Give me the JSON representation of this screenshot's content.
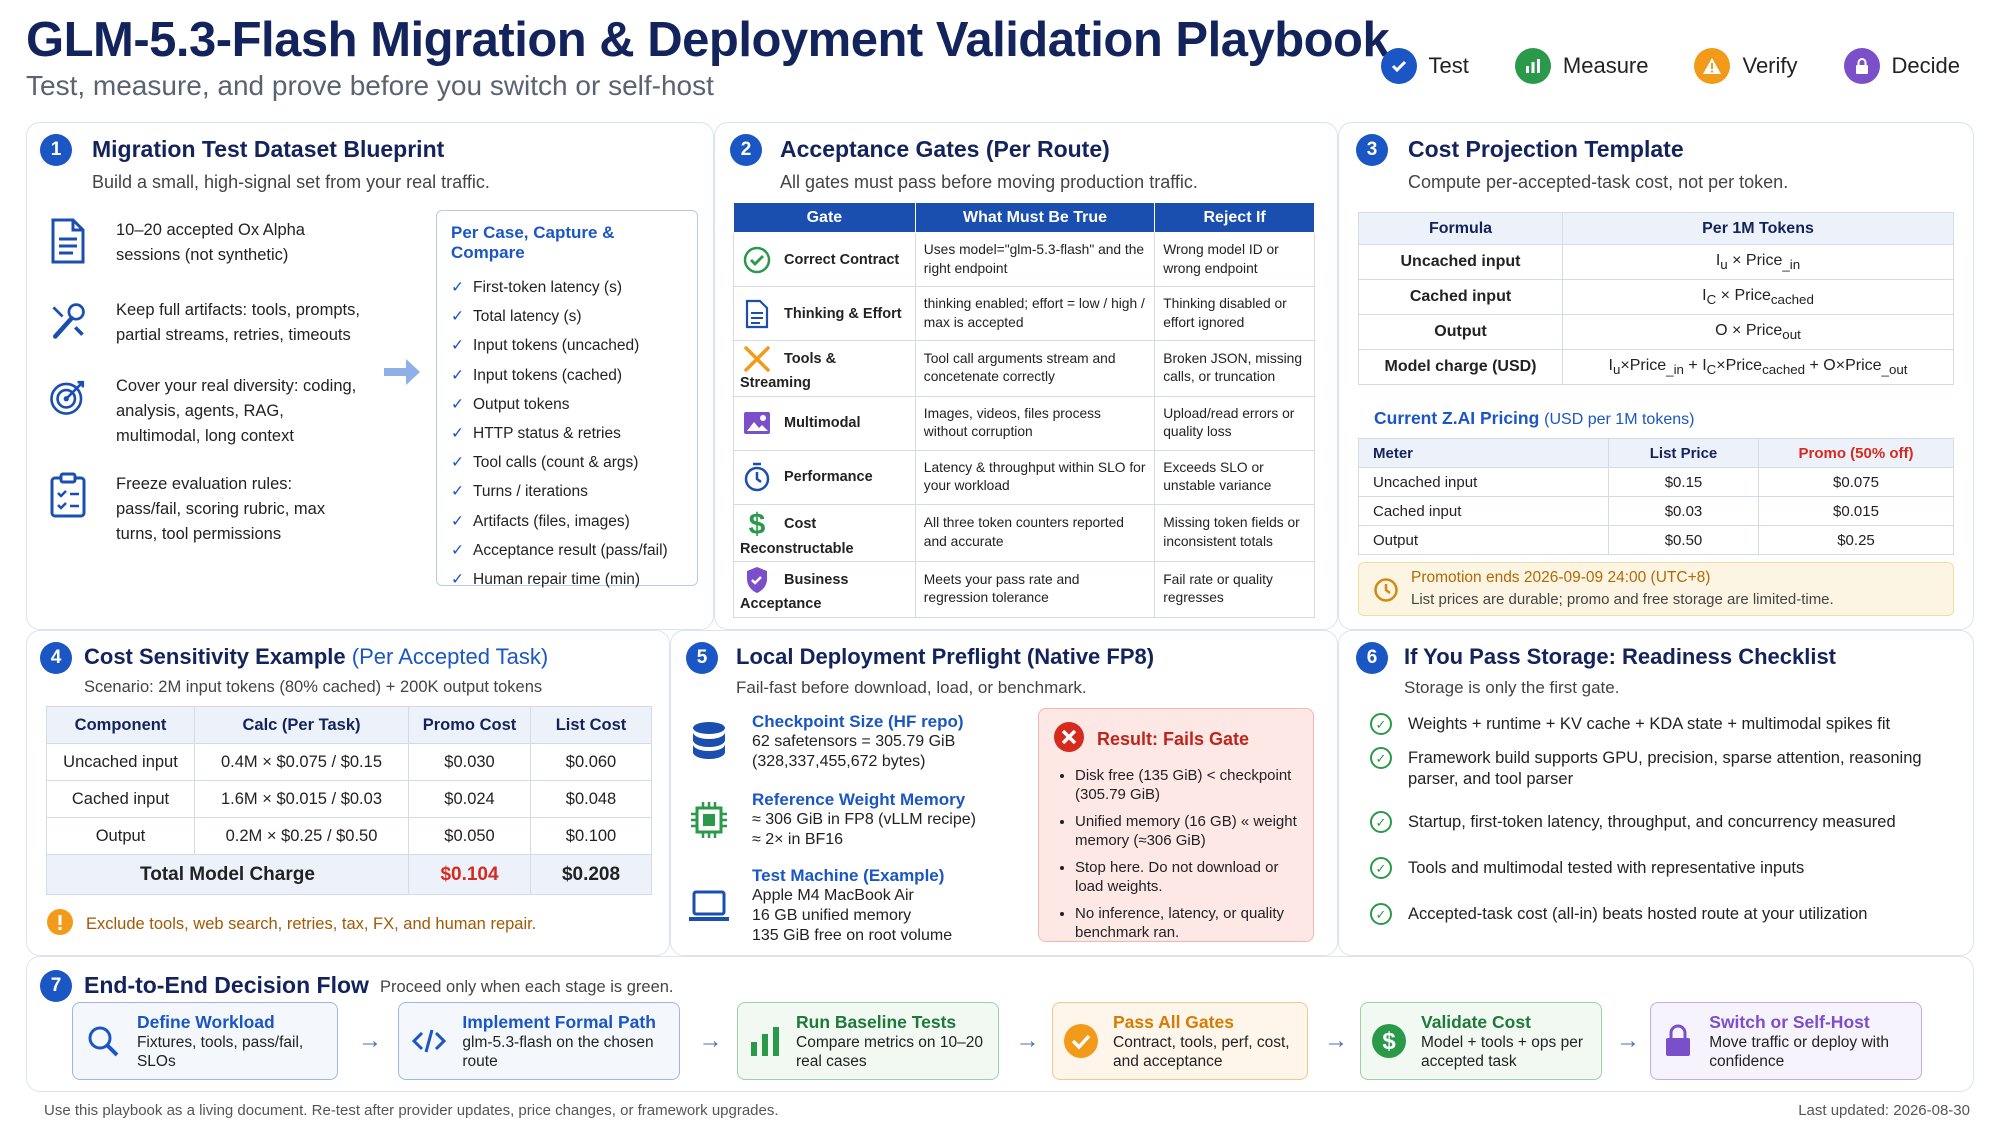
{
  "header": {
    "title": "GLM-5.3-Flash Migration & Deployment Validation Playbook",
    "subtitle": "Test, measure, and prove before you switch or self-host",
    "legend": [
      "Test",
      "Measure",
      "Verify",
      "Decide"
    ],
    "legend_colors": [
      "#1a56c4",
      "#2a9a4a",
      "#f29a1a",
      "#7a4fc9"
    ]
  },
  "s1": {
    "num": "1",
    "title": "Migration Test Dataset Blueprint",
    "sub": "Build a small, high-signal set from your real traffic.",
    "items": [
      {
        "icon": "document-icon",
        "text": "10–20 accepted Ox Alpha sessions (not synthetic)"
      },
      {
        "icon": "tools-icon",
        "text": "Keep full artifacts: tools, prompts, partial streams, retries, timeouts"
      },
      {
        "icon": "target-icon",
        "text": "Cover your real diversity: coding, analysis, agents, RAG, multimodal, long context"
      },
      {
        "icon": "clipboard-icon",
        "text": "Freeze evaluation rules: pass/fail, scoring rubric, max turns, tool permissions"
      }
    ],
    "capture_title": "Per Case, Capture & Compare",
    "capture": [
      "First-token latency (s)",
      "Total latency (s)",
      "Input tokens (uncached)",
      "Input tokens (cached)",
      "Output tokens",
      "HTTP status & retries",
      "Tool calls (count & args)",
      "Turns / iterations",
      "Artifacts (files, images)",
      "Acceptance result (pass/fail)",
      "Human repair time (min)"
    ]
  },
  "s2": {
    "num": "2",
    "title": "Acceptance Gates (Per Route)",
    "sub": "All gates must pass before moving production traffic.",
    "headers": [
      "Gate",
      "What Must Be True",
      "Reject If"
    ],
    "rows": [
      {
        "icon": "check-circle-icon",
        "gate": "Correct Contract",
        "true": "Uses model=\"glm-5.3-flash\" and the right endpoint",
        "reject": "Wrong model ID or wrong endpoint"
      },
      {
        "icon": "document-icon",
        "gate": "Thinking & Effort",
        "true": "thinking enabled; effort = low / high / max is accepted",
        "reject": "Thinking disabled or effort ignored"
      },
      {
        "icon": "tools-icon",
        "gate": "Tools & Streaming",
        "true": "Tool call arguments stream and concetenate correctly",
        "reject": "Broken JSON, missing calls, or truncation"
      },
      {
        "icon": "image-icon",
        "gate": "Multimodal",
        "true": "Images, videos, files process without corruption",
        "reject": "Upload/read errors or quality loss"
      },
      {
        "icon": "stopwatch-icon",
        "gate": "Performance",
        "true": "Latency & throughput within SLO for your workload",
        "reject": "Exceeds SLO or unstable variance"
      },
      {
        "icon": "dollar-icon",
        "gate": "Cost Reconstructable",
        "true": "All three token counters reported and accurate",
        "reject": "Missing token fields or inconsistent totals"
      },
      {
        "icon": "shield-icon",
        "gate": "Business Acceptance",
        "true": "Meets your pass rate and regression tolerance",
        "reject": "Fail rate or quality regresses"
      }
    ]
  },
  "s3": {
    "num": "3",
    "title": "Cost Projection Template",
    "sub": "Compute per-accepted-task cost, not per token.",
    "formula_headers": [
      "Formula",
      "Per 1M Tokens"
    ],
    "formulas": [
      {
        "label": "Uncached input",
        "f": "I",
        "fs": "u",
        "f2": " × Price",
        "f2s": "_in",
        "f3": "",
        "f3s": "",
        "f4": "",
        "f4s": ""
      },
      {
        "label": "Cached input",
        "f": "I",
        "fs": "C",
        "f2": " × Price",
        "f2s": "cached",
        "f3": "",
        "f3s": "",
        "f4": "",
        "f4s": ""
      },
      {
        "label": "Output",
        "f": "O × Price",
        "fs": "out",
        "f2": "",
        "f2s": "",
        "f3": "",
        "f3s": "",
        "f4": "",
        "f4s": ""
      },
      {
        "label": "Model charge (USD)",
        "f": "I",
        "fs": "u",
        "f2": "×Price",
        "f2s": "_in",
        "f3": " + I",
        "f3s": "C",
        "f4": "×Price",
        "f4s": "cached",
        "f5": " + O×Price",
        "f5s": "_out"
      }
    ],
    "pricing_title": "Current Z.AI Pricing",
    "pricing_unit": "(USD per 1M tokens)",
    "pricing_headers": [
      "Meter",
      "List Price",
      "Promo (50% off)"
    ],
    "pricing": [
      [
        "Uncached input",
        "$0.15",
        "$0.075"
      ],
      [
        "Cached input",
        "$0.03",
        "$0.015"
      ],
      [
        "Output",
        "$0.50",
        "$0.25"
      ]
    ],
    "promo_line1": "Promotion ends 2026-09-09 24:00 (UTC+8)",
    "promo_line2": "List prices are durable; promo and free storage are limited-time."
  },
  "s4": {
    "num": "4",
    "title": "Cost Sensitivity Example",
    "title_paren": "(Per Accepted Task)",
    "sub": "Scenario: 2M input tokens (80% cached) + 200K output tokens",
    "headers": [
      "Component",
      "Calc (Per Task)",
      "Promo Cost",
      "List Cost"
    ],
    "rows": [
      [
        "Uncached input",
        "0.4M × $0.075 / $0.15",
        "$0.030",
        "$0.060"
      ],
      [
        "Cached input",
        "1.6M × $0.015 / $0.03",
        "$0.024",
        "$0.048"
      ],
      [
        "Output",
        "0.2M × $0.25 / $0.50",
        "$0.050",
        "$0.100"
      ]
    ],
    "total": [
      "Total Model Charge",
      "$0.104",
      "$0.208"
    ],
    "note": "Exclude tools, web search, retries, tax, FX, and human repair."
  },
  "s5": {
    "num": "5",
    "title": "Local Deployment Preflight (Native FP8)",
    "sub": "Fail-fast before download, load, or benchmark.",
    "items": [
      {
        "icon": "database-icon",
        "title": "Checkpoint Size (HF repo)",
        "lines": [
          "62 safetensors = 305.79 GiB",
          "(328,337,455,672 bytes)"
        ]
      },
      {
        "icon": "chip-icon",
        "title": "Reference Weight Memory",
        "lines": [
          "≈ 306 GiB in FP8 (vLLM recipe)",
          "≈ 2× in BF16"
        ]
      },
      {
        "icon": "laptop-icon",
        "title": "Test Machine (Example)",
        "lines": [
          "Apple M4 MacBook Air",
          "16 GB unified memory",
          "135 GiB free on root volume"
        ]
      }
    ],
    "fail_title": "Result: Fails Gate",
    "fail_items": [
      "Disk free (135 GiB) < checkpoint (305.79 GiB)",
      "Unified memory (16 GB) « weight memory (≈306 GiB)",
      "Stop here. Do not download or load weights.",
      "No inference, latency, or quality benchmark ran."
    ]
  },
  "s6": {
    "num": "6",
    "title": "If You Pass Storage: Readiness Checklist",
    "sub": "Storage is only the first gate.",
    "items": [
      "Weights + runtime + KV cache + KDA state + multimodal spikes fit",
      "Framework build supports GPU, precision, sparse attention, reasoning parser, and tool parser",
      "Startup, first-token latency, throughput, and concurrency measured",
      "Tools and multimodal tested with representative inputs",
      "Accepted-task cost (all-in) beats hosted route at your utilization"
    ]
  },
  "s7": {
    "num": "7",
    "title": "End-to-End Decision Flow",
    "sub": "Proceed only when each stage is green.",
    "steps": [
      {
        "icon": "search-icon",
        "title": "Define Workload",
        "desc": "Fixtures, tools, pass/fail, SLOs",
        "color": "#1a56c4"
      },
      {
        "icon": "code-icon",
        "title": "Implement Formal Path",
        "desc": "glm-5.3-flash on the chosen route",
        "color": "#1a56c4"
      },
      {
        "icon": "bar-chart-icon",
        "title": "Run Baseline Tests",
        "desc": "Compare metrics on 10–20 real cases",
        "color": "#2a9a4a"
      },
      {
        "icon": "check-circle-icon",
        "title": "Pass All Gates",
        "desc": "Contract, tools, perf, cost, and acceptance",
        "color": "#f29a1a"
      },
      {
        "icon": "dollar-icon",
        "title": "Validate Cost",
        "desc": "Model + tools + ops per accepted task",
        "color": "#2a9a4a"
      },
      {
        "icon": "lock-icon",
        "title": "Switch or Self-Host",
        "desc": "Move traffic or deploy with confidence",
        "color": "#7a4fc9"
      }
    ]
  },
  "footer": {
    "left": "Use this playbook as a living document. Re-test after provider updates, price changes, or framework upgrades.",
    "right": "Last updated:  2026-08-30"
  }
}
